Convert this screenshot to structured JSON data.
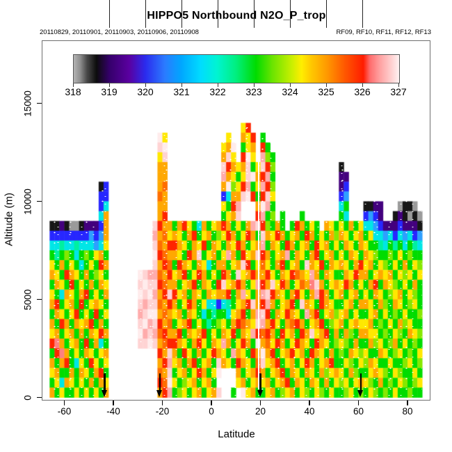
{
  "title": "HIPPO5 Northbound N2O_P_trop",
  "subtitle_left": "20110829, 20110901, 20110903, 20110906, 20110908",
  "subtitle_right": "RF09, RF10, RF11, RF12, RF13",
  "axes": {
    "x_label": "Latitude",
    "y_label": "Altitude (m)"
  },
  "chart_data": {
    "type": "heatmap",
    "title": "HIPPO5 Northbound N2O_P_trop",
    "xlabel": "Latitude",
    "ylabel": "Altitude (m)",
    "x_ticks": [
      -60,
      -40,
      -20,
      0,
      20,
      40,
      60,
      80
    ],
    "y_ticks": [
      0,
      5000,
      10000,
      15000
    ],
    "xlim": [
      -69,
      90
    ],
    "ylim": [
      0,
      18300
    ],
    "grid_on": false,
    "legend_position": "top-inside",
    "flight_boundary_arrows_lat": [
      -43.5,
      -21,
      20,
      61
    ],
    "flight_gap_line_lat": 19.4,
    "colorbar": {
      "ticks": [
        318,
        319,
        320,
        321,
        322,
        323,
        324,
        325,
        326,
        327
      ],
      "gradient": [
        [
          0,
          "#b4b4b4"
        ],
        [
          2,
          "#8e8e8e"
        ],
        [
          4,
          "#4a4a4a"
        ],
        [
          7,
          "#0c0c0c"
        ],
        [
          11,
          "#35006b"
        ],
        [
          17,
          "#5a00a0"
        ],
        [
          22,
          "#2b2bee"
        ],
        [
          28,
          "#2b7bff"
        ],
        [
          33,
          "#00a6ff"
        ],
        [
          39,
          "#00dcff"
        ],
        [
          44,
          "#00f4d2"
        ],
        [
          50,
          "#00ef7d"
        ],
        [
          56,
          "#00dc00"
        ],
        [
          61,
          "#6ae400"
        ],
        [
          67,
          "#c9ef00"
        ],
        [
          70,
          "#ffee00"
        ],
        [
          73,
          "#ffc800"
        ],
        [
          78,
          "#ff9700"
        ],
        [
          83,
          "#ff5b00"
        ],
        [
          89,
          "#ff1c00"
        ],
        [
          91,
          "#ff6c6c"
        ],
        [
          94,
          "#ffa0a0"
        ],
        [
          97,
          "#ffc8c8"
        ],
        [
          99,
          "#ffe4e4"
        ],
        [
          100,
          "#fff4f4"
        ]
      ]
    },
    "grid": {
      "lat0": -68,
      "dlat": 2,
      "alt_top": 14500,
      "dalt": 500,
      "palette": {
        "g": "#9a9a9a",
        "k": "#161616",
        "p": "#43007e",
        "b": "#2727ff",
        "u": "#2e9fff",
        "c": "#00e6e6",
        "t": "#00f0a0",
        "n": "#00dc00",
        "l": "#86e800",
        "y": "#ffe800",
        "o": "#ffa800",
        "d": "#ff6d00",
        "r": "#ff2500",
        "s": "#ff8080",
        "i": "#ffabab",
        "w": "#ffd3d3",
        "f": "#ffecec"
      },
      "cells": [
        [
          1,
          40,
          "yr"
        ],
        [
          2,
          23,
          "fy"
        ],
        [
          2,
          37,
          "y"
        ],
        [
          2,
          40,
          "oyr"
        ],
        [
          2,
          44,
          "n"
        ],
        [
          3,
          23,
          "wf"
        ],
        [
          3,
          36,
          "yof"
        ],
        [
          3,
          40,
          "nyo"
        ],
        [
          3,
          44,
          "rn"
        ],
        [
          4,
          23,
          "yw"
        ],
        [
          4,
          36,
          "owy"
        ],
        [
          4,
          40,
          "rfy"
        ],
        [
          4,
          44,
          "iln"
        ],
        [
          5,
          23,
          "oo"
        ],
        [
          5,
          36,
          "wro"
        ],
        [
          5,
          39,
          "yowny"
        ],
        [
          5,
          44,
          "wrl"
        ],
        [
          5,
          60,
          "k"
        ],
        [
          6,
          23,
          "oo"
        ],
        [
          6,
          36,
          "ioy"
        ],
        [
          6,
          39,
          "nywfo"
        ],
        [
          6,
          44,
          "rin"
        ],
        [
          6,
          60,
          "pp"
        ],
        [
          7,
          11,
          "kb"
        ],
        [
          7,
          23,
          "od"
        ],
        [
          7,
          36,
          "ofl"
        ],
        [
          7,
          39,
          "yriny"
        ],
        [
          7,
          44,
          "irl"
        ],
        [
          7,
          60,
          "pb"
        ],
        [
          8,
          11,
          "bb"
        ],
        [
          8,
          23,
          "do"
        ],
        [
          8,
          36,
          "bco"
        ],
        [
          8,
          39,
          "owfrn"
        ],
        [
          8,
          44,
          "rwy"
        ],
        [
          8,
          60,
          "bu"
        ],
        [
          9,
          11,
          "bc"
        ],
        [
          9,
          23,
          "oo"
        ],
        [
          9,
          36,
          "ynr"
        ],
        [
          9,
          39,
          "i...o"
        ],
        [
          9,
          44,
          "fin"
        ],
        [
          9,
          60,
          "cn"
        ],
        [
          9,
          65,
          "kkpp"
        ],
        [
          9,
          72,
          "gkkg"
        ],
        [
          10,
          11,
          "co"
        ],
        [
          10,
          23,
          "or"
        ],
        [
          10,
          36,
          "nyo"
        ],
        [
          10,
          39,
          "w...r"
        ],
        [
          10,
          44,
          "inl"
        ],
        [
          10,
          48,
          "n"
        ],
        [
          10,
          52,
          "n"
        ],
        [
          10,
          60,
          "nc"
        ],
        [
          10,
          65,
          "bubp"
        ],
        [
          10,
          71,
          "kpkgkg"
        ],
        [
          11,
          1,
          "kkpkggkpppbo"
        ],
        [
          11,
          22,
          "wroo"
        ],
        [
          11,
          26,
          "norynconyo"
        ],
        [
          11,
          36,
          "ronynoiw"
        ],
        [
          11,
          44,
          "rlnon.nronyn.oyn"
        ],
        [
          11,
          60,
          "ynony"
        ],
        [
          11,
          65,
          "ccub"
        ],
        [
          11,
          69,
          "pppbpppk"
        ],
        [
          12,
          1,
          "bbbbbbbbubuo"
        ],
        [
          12,
          22,
          "iody"
        ],
        [
          12,
          26,
          "oynornyonl"
        ],
        [
          12,
          36,
          "yronyron"
        ],
        [
          12,
          44,
          "woyronyonronynol"
        ],
        [
          12,
          60,
          "oynyo"
        ],
        [
          12,
          65,
          "nycc"
        ],
        [
          12,
          69,
          "ucbcucbu"
        ],
        [
          13,
          1,
          "cctcctcccucy"
        ],
        [
          13,
          22,
          "wdor"
        ],
        [
          13,
          26,
          "roynoyrnoy"
        ],
        [
          13,
          36,
          "noyronyo"
        ],
        [
          13,
          44,
          "inoynronyonryony"
        ],
        [
          13,
          60,
          "noyno"
        ],
        [
          13,
          65,
          "ynnt"
        ],
        [
          13,
          69,
          "cntncntc"
        ],
        [
          14,
          1,
          "ntnlncnlnyon"
        ],
        [
          14,
          22,
          "frdo"
        ],
        [
          14,
          26,
          "oynrownyon"
        ],
        [
          14,
          36,
          "yionryow"
        ],
        [
          14,
          44,
          "ronyoinoynornyon"
        ],
        [
          14,
          60,
          "ynoyn"
        ],
        [
          14,
          65,
          "oyln"
        ],
        [
          14,
          69,
          "nlnynlnn"
        ],
        [
          15,
          1,
          "ynonyncnynro"
        ],
        [
          15,
          22,
          "word"
        ],
        [
          15,
          26,
          "nroynoycno"
        ],
        [
          15,
          36,
          "onyowrny"
        ],
        [
          15,
          44,
          "dynornyonwoyrnoy"
        ],
        [
          15,
          60,
          "oynor"
        ],
        [
          15,
          65,
          "yony"
        ],
        [
          15,
          69,
          "lnynonyl"
        ],
        [
          16,
          1,
          "oynroynonlyn"
        ],
        [
          16,
          19,
          "fwi"
        ],
        [
          16,
          22,
          "idor"
        ],
        [
          16,
          26,
          "yornyronyn"
        ],
        [
          16,
          36,
          "ronwyoro"
        ],
        [
          16,
          44,
          "orynoyrdoyionoyn"
        ],
        [
          16,
          60,
          "noyro"
        ],
        [
          16,
          65,
          "onyo"
        ],
        [
          16,
          69,
          "yonylyny"
        ],
        [
          17,
          1,
          "noynrnynonoy"
        ],
        [
          17,
          19,
          "wfw"
        ],
        [
          17,
          22,
          "wrdo"
        ],
        [
          17,
          26,
          "onyornoynr"
        ],
        [
          17,
          36,
          "wyoronyi"
        ],
        [
          17,
          44,
          "rowyronydoswonyo"
        ],
        [
          17,
          60,
          "yrony"
        ],
        [
          17,
          65,
          "norn"
        ],
        [
          17,
          69,
          "oylnynon"
        ],
        [
          18,
          1,
          "yncoynornyno"
        ],
        [
          18,
          19,
          "fwf"
        ],
        [
          18,
          22,
          "iorw"
        ],
        [
          18,
          26,
          "ryonoynoyo"
        ],
        [
          18,
          36,
          "ornoiyno"
        ],
        [
          18,
          44,
          "iwroynorynoirony"
        ],
        [
          18,
          60,
          "onyon"
        ],
        [
          18,
          65,
          "ynoy"
        ],
        [
          18,
          69,
          "nlyonyln"
        ],
        [
          19,
          1,
          "ornyonrnyoyn"
        ],
        [
          19,
          19,
          "wiw"
        ],
        [
          19,
          22,
          "wdor"
        ],
        [
          19,
          26,
          "onyronyccb"
        ],
        [
          19,
          36,
          "ctnyorwo"
        ],
        [
          19,
          44,
          "rionyornwoynroyn"
        ],
        [
          19,
          60,
          "nyono"
        ],
        [
          19,
          65,
          "oyno"
        ],
        [
          19,
          69,
          "lnoynlyn"
        ],
        [
          20,
          1,
          "noynyrnynrny"
        ],
        [
          20,
          19,
          "iwf"
        ],
        [
          20,
          22,
          "fodo"
        ],
        [
          20,
          26,
          "yonoyncntn"
        ],
        [
          20,
          36,
          "ncyornoi"
        ],
        [
          20,
          44,
          "wrnoyroyniornyol"
        ],
        [
          20,
          60,
          "yonyn"
        ],
        [
          20,
          65,
          "nyon"
        ],
        [
          20,
          69,
          "ynlnynnl"
        ],
        [
          21,
          1,
          "onronoyornon"
        ],
        [
          21,
          19,
          "wfi"
        ],
        [
          21,
          22,
          "wrod"
        ],
        [
          21,
          26,
          "nyornyntnl"
        ],
        [
          21,
          36,
          "ynordoyw"
        ],
        [
          21,
          44,
          "iorynodronyornly"
        ],
        [
          21,
          60,
          "onyoy"
        ],
        [
          21,
          65,
          "yonl"
        ],
        [
          21,
          69,
          "nynolynn"
        ],
        [
          22,
          1,
          "yonyononoyro"
        ],
        [
          22,
          19,
          "fiw"
        ],
        [
          22,
          22,
          "idro"
        ],
        [
          22,
          26,
          "ornoyornyn"
        ],
        [
          22,
          36,
          "oyrnoyir"
        ],
        [
          22,
          44,
          "dronryonrowyorno"
        ],
        [
          22,
          60,
          "nolno"
        ],
        [
          22,
          65,
          "oyyn"
        ],
        [
          22,
          69,
          "lnylnoyl"
        ],
        [
          23,
          1,
          "rsonyonrnocn"
        ],
        [
          23,
          19,
          "wwf"
        ],
        [
          23,
          22,
          "wodr"
        ],
        [
          23,
          26,
          "roynorynoy"
        ],
        [
          23,
          36,
          "ionyronf"
        ],
        [
          23,
          44,
          "odyronyroynroynl"
        ],
        [
          23,
          60,
          "ylnon"
        ],
        [
          23,
          65,
          "noly"
        ],
        [
          23,
          69,
          "nlonynln"
        ],
        [
          24,
          1,
          "nrsonynoynyo"
        ],
        [
          24,
          23,
          "row"
        ],
        [
          24,
          26,
          "onrynonyro"
        ],
        [
          24,
          36,
          "ynioynro"
        ],
        [
          24,
          44,
          "fornyoryonroynon"
        ],
        [
          24,
          60,
          "lnoyl"
        ],
        [
          24,
          65,
          "ynno"
        ],
        [
          24,
          69,
          "ynlynlny"
        ],
        [
          25,
          1,
          "onorncynryny"
        ],
        [
          25,
          23,
          "ori"
        ],
        [
          25,
          26,
          "yonornyonw"
        ],
        [
          25,
          36,
          "oynroynd"
        ],
        [
          25,
          44,
          "wyornyonyronyorn"
        ],
        [
          25,
          60,
          "nylny"
        ],
        [
          25,
          65,
          "loyn"
        ],
        [
          25,
          69,
          "nynnlynl"
        ],
        [
          26,
          1,
          "yonnonoynorn"
        ],
        [
          26,
          23,
          "dow"
        ],
        [
          26,
          26,
          "nyonyronyf"
        ],
        [
          26,
          36,
          "...onyor"
        ],
        [
          26,
          44,
          "onyornoynoynolyo"
        ],
        [
          26,
          60,
          "ynoln"
        ],
        [
          26,
          65,
          "nyoy"
        ],
        [
          26,
          69,
          "lnylnnyn"
        ],
        [
          27,
          1,
          "nycoynynonoy"
        ],
        [
          27,
          23,
          "rdf"
        ],
        [
          27,
          26,
          "ynlyonyon."
        ],
        [
          27,
          36,
          "...yonyo"
        ],
        [
          27,
          44,
          "yonyornoynoynony"
        ],
        [
          27,
          60,
          "lynyo"
        ],
        [
          27,
          65,
          "ylno"
        ],
        [
          27,
          69,
          "nlnylnly"
        ],
        [
          28,
          1,
          "onynnynynyno"
        ],
        [
          28,
          23,
          "ori"
        ],
        [
          28,
          26,
          "nlynyonyow"
        ],
        [
          28,
          36,
          "..n.fyon"
        ],
        [
          28,
          44,
          "nyonlyonylnylnyn"
        ],
        [
          28,
          60,
          "nlynl"
        ],
        [
          28,
          65,
          "nyln"
        ],
        [
          28,
          69,
          "lnynnlnn"
        ]
      ]
    }
  }
}
